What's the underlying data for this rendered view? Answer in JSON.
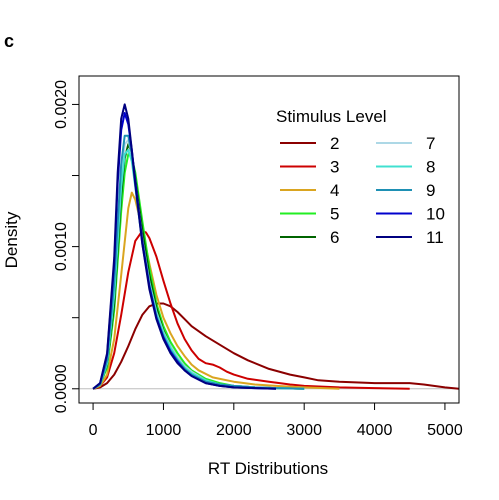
{
  "panel_label": "c",
  "chart_data": {
    "type": "line",
    "xlabel": "RT Distributions",
    "ylabel": "Density",
    "xlim": [
      -200,
      5200
    ],
    "ylim": [
      -0.0001,
      0.0022
    ],
    "x_ticks": [
      0,
      1000,
      2000,
      3000,
      4000,
      5000
    ],
    "x_tick_labels": [
      "0",
      "1000",
      "2000",
      "3000",
      "4000",
      "5000"
    ],
    "y_ticks": [
      0.0,
      0.001,
      0.002
    ],
    "y_tick_labels": [
      "0.0000",
      "0.0010",
      "0.0020"
    ],
    "y_minor_ticks": [
      0.0005,
      0.0015
    ],
    "baseline_color": "#bebebe",
    "legend": {
      "title": "Stimulus Level",
      "position": "top-right",
      "columns": 2
    },
    "series": [
      {
        "name": "2",
        "color": "#8b0000",
        "x": [
          0,
          100,
          200,
          300,
          400,
          500,
          600,
          700,
          800,
          900,
          1000,
          1100,
          1200,
          1300,
          1400,
          1600,
          1800,
          2000,
          2200,
          2500,
          2800,
          3000,
          3200,
          3500,
          4000,
          4500,
          4700,
          5000,
          5200
        ],
        "y": [
          0.0,
          1e-05,
          4e-05,
          0.0001,
          0.00019,
          0.0003,
          0.00042,
          0.00052,
          0.00058,
          0.0006,
          0.0006,
          0.00058,
          0.00054,
          0.00049,
          0.00044,
          0.00037,
          0.00031,
          0.00025,
          0.0002,
          0.00014,
          0.0001,
          8e-05,
          6e-05,
          5e-05,
          4e-05,
          4e-05,
          3e-05,
          1e-05,
          0.0
        ]
      },
      {
        "name": "3",
        "color": "#cd0000",
        "x": [
          0,
          100,
          200,
          300,
          400,
          500,
          600,
          700,
          750,
          800,
          900,
          1000,
          1100,
          1200,
          1300,
          1400,
          1500,
          1600,
          1700,
          1800,
          1900,
          2000,
          2200,
          2500,
          2800,
          3000,
          3500,
          4000,
          4500
        ],
        "y": [
          0.0,
          2e-05,
          8e-05,
          0.00025,
          0.00052,
          0.00082,
          0.00104,
          0.00111,
          0.0011,
          0.00106,
          0.00093,
          0.00076,
          0.0006,
          0.00046,
          0.00035,
          0.00027,
          0.00021,
          0.00018,
          0.00017,
          0.00015,
          0.00012,
          0.0001,
          7e-05,
          5e-05,
          3e-05,
          2e-05,
          1e-05,
          5e-06,
          0.0
        ]
      },
      {
        "name": "4",
        "color": "#daa520",
        "x": [
          0,
          100,
          200,
          300,
          400,
          500,
          550,
          600,
          700,
          800,
          900,
          1000,
          1100,
          1200,
          1300,
          1400,
          1500,
          1700,
          2000,
          2300,
          2600,
          3000,
          3500
        ],
        "y": [
          0.0,
          2e-05,
          0.0001,
          0.00035,
          0.0008,
          0.00127,
          0.00138,
          0.00133,
          0.00112,
          0.00088,
          0.00066,
          0.0005,
          0.00039,
          0.0003,
          0.00023,
          0.00017,
          0.00013,
          8e-05,
          5e-05,
          3e-05,
          2e-05,
          1e-05,
          0.0
        ]
      },
      {
        "name": "5",
        "color": "#22ee22",
        "x": [
          0,
          100,
          200,
          300,
          400,
          450,
          500,
          550,
          600,
          700,
          800,
          900,
          1000,
          1100,
          1200,
          1300,
          1400,
          1600,
          1800,
          2000,
          2300,
          2600,
          3000
        ],
        "y": [
          0.0,
          3e-05,
          0.00015,
          0.00055,
          0.00125,
          0.00152,
          0.00165,
          0.00163,
          0.00152,
          0.00118,
          0.00085,
          0.0006,
          0.00044,
          0.00033,
          0.00025,
          0.00018,
          0.00013,
          7e-05,
          4e-05,
          2e-05,
          1e-05,
          5e-06,
          0.0
        ]
      },
      {
        "name": "6",
        "color": "#006400",
        "x": [
          0,
          100,
          200,
          300,
          400,
          450,
          500,
          550,
          600,
          700,
          800,
          900,
          1000,
          1100,
          1200,
          1300,
          1400,
          1600,
          1800,
          2000,
          2300,
          2600,
          3000
        ],
        "y": [
          0.0,
          3e-05,
          0.00017,
          0.0006,
          0.00136,
          0.00162,
          0.00172,
          0.00166,
          0.00148,
          0.00112,
          0.0008,
          0.00057,
          0.00041,
          0.0003,
          0.00022,
          0.00016,
          0.00012,
          6e-05,
          3e-05,
          2e-05,
          1e-05,
          5e-06,
          0.0
        ]
      },
      {
        "name": "7",
        "color": "#add8e6",
        "x": [
          0,
          100,
          200,
          300,
          400,
          450,
          500,
          550,
          600,
          700,
          800,
          900,
          1000,
          1100,
          1200,
          1300,
          1400,
          1600,
          1800,
          2000,
          2300,
          2600,
          3000
        ],
        "y": [
          0.0,
          3e-05,
          0.00018,
          0.00068,
          0.00148,
          0.00172,
          0.00175,
          0.00165,
          0.00145,
          0.00105,
          0.00075,
          0.00054,
          0.0004,
          0.0003,
          0.00022,
          0.00016,
          0.00012,
          6e-05,
          3e-05,
          2e-05,
          1e-05,
          5e-06,
          0.0
        ]
      },
      {
        "name": "8",
        "color": "#40e0d0",
        "x": [
          0,
          100,
          200,
          300,
          400,
          450,
          500,
          550,
          600,
          700,
          800,
          900,
          1000,
          1100,
          1200,
          1300,
          1400,
          1600,
          1800,
          2000,
          2300,
          2600,
          3000
        ],
        "y": [
          0.0,
          3e-05,
          0.00018,
          0.00066,
          0.00142,
          0.00165,
          0.00168,
          0.0016,
          0.00142,
          0.00104,
          0.00074,
          0.00053,
          0.00039,
          0.00029,
          0.00021,
          0.00015,
          0.00011,
          6e-05,
          3e-05,
          2e-05,
          1e-05,
          5e-06,
          0.0
        ]
      },
      {
        "name": "9",
        "color": "#1e90b4",
        "x": [
          0,
          100,
          200,
          300,
          400,
          450,
          500,
          550,
          600,
          700,
          800,
          900,
          1000,
          1100,
          1200,
          1300,
          1400,
          1600,
          1800,
          2000,
          2300,
          2600,
          3000
        ],
        "y": [
          0.0,
          3e-05,
          0.0002,
          0.00075,
          0.00158,
          0.00178,
          0.00178,
          0.00165,
          0.00143,
          0.00102,
          0.00072,
          0.00051,
          0.00037,
          0.00027,
          0.0002,
          0.00014,
          0.0001,
          5e-05,
          3e-05,
          2e-05,
          1e-05,
          5e-06,
          0.0
        ]
      },
      {
        "name": "10",
        "color": "#0000cd",
        "x": [
          0,
          100,
          200,
          300,
          350,
          400,
          450,
          500,
          550,
          600,
          700,
          800,
          900,
          1000,
          1100,
          1200,
          1300,
          1400,
          1600,
          1800,
          2000,
          2300,
          2600
        ],
        "y": [
          0.0,
          4e-05,
          0.00024,
          0.00088,
          0.00145,
          0.00182,
          0.00194,
          0.00186,
          0.00168,
          0.00146,
          0.00104,
          0.00072,
          0.0005,
          0.00036,
          0.00026,
          0.00019,
          0.00013,
          9e-05,
          4e-05,
          2e-05,
          1e-05,
          5e-06,
          0.0
        ]
      },
      {
        "name": "11",
        "color": "#000080",
        "x": [
          0,
          100,
          200,
          300,
          350,
          400,
          450,
          500,
          550,
          600,
          700,
          800,
          900,
          1000,
          1100,
          1200,
          1300,
          1400,
          1600,
          1800,
          2000,
          2300,
          2600
        ],
        "y": [
          0.0,
          4e-05,
          0.00025,
          0.00092,
          0.00152,
          0.0019,
          0.002,
          0.0019,
          0.00168,
          0.00144,
          0.00102,
          0.0007,
          0.00049,
          0.00035,
          0.00025,
          0.00018,
          0.00013,
          9e-05,
          4e-05,
          2e-05,
          1e-05,
          5e-06,
          0.0
        ]
      }
    ]
  }
}
